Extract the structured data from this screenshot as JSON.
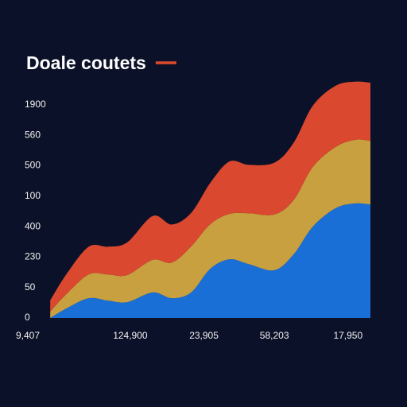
{
  "chart_data": {
    "type": "stacked_area",
    "title": "Doale coutets",
    "title_mark_color": "#e04a2e",
    "x": [
      0,
      5,
      12,
      18,
      24,
      32,
      38,
      44,
      50,
      56,
      62,
      70,
      76,
      82,
      89,
      95,
      100
    ],
    "series": [
      {
        "color": "#1a6fd6",
        "values": [
          0,
          31,
          65,
          57,
          52,
          84,
          65,
          84,
          162,
          193,
          177,
          157,
          209,
          300,
          360,
          376,
          373
        ]
      },
      {
        "color": "#c9a040",
        "values": [
          21,
          47,
          78,
          86,
          89,
          107,
          117,
          151,
          146,
          149,
          167,
          183,
          178,
          196,
          201,
          209,
          209
        ]
      },
      {
        "color": "#d9482f",
        "values": [
          37,
          65,
          91,
          91,
          107,
          144,
          125,
          110,
          136,
          172,
          159,
          170,
          188,
          201,
          201,
          191,
          191
        ]
      }
    ],
    "xlim": [
      -7,
      100
    ],
    "xticks": [
      {
        "value": -7,
        "label": "9,407"
      },
      {
        "value": 25,
        "label": "124,900"
      },
      {
        "value": 48,
        "label": "23,905"
      },
      {
        "value": 70,
        "label": "58,203"
      },
      {
        "value": 93,
        "label": "17,950"
      }
    ],
    "ylim": [
      0,
      800
    ],
    "yticks": [
      0,
      {
        "value": 100,
        "label": "50"
      },
      {
        "value": 200,
        "label": "230"
      },
      {
        "value": 300,
        "label": "400"
      },
      {
        "value": 400,
        "label": "100"
      },
      {
        "value": 500,
        "label": "500"
      },
      {
        "value": 600,
        "label": "560"
      },
      {
        "value": 700,
        "label": "1900"
      }
    ],
    "grid": false
  }
}
